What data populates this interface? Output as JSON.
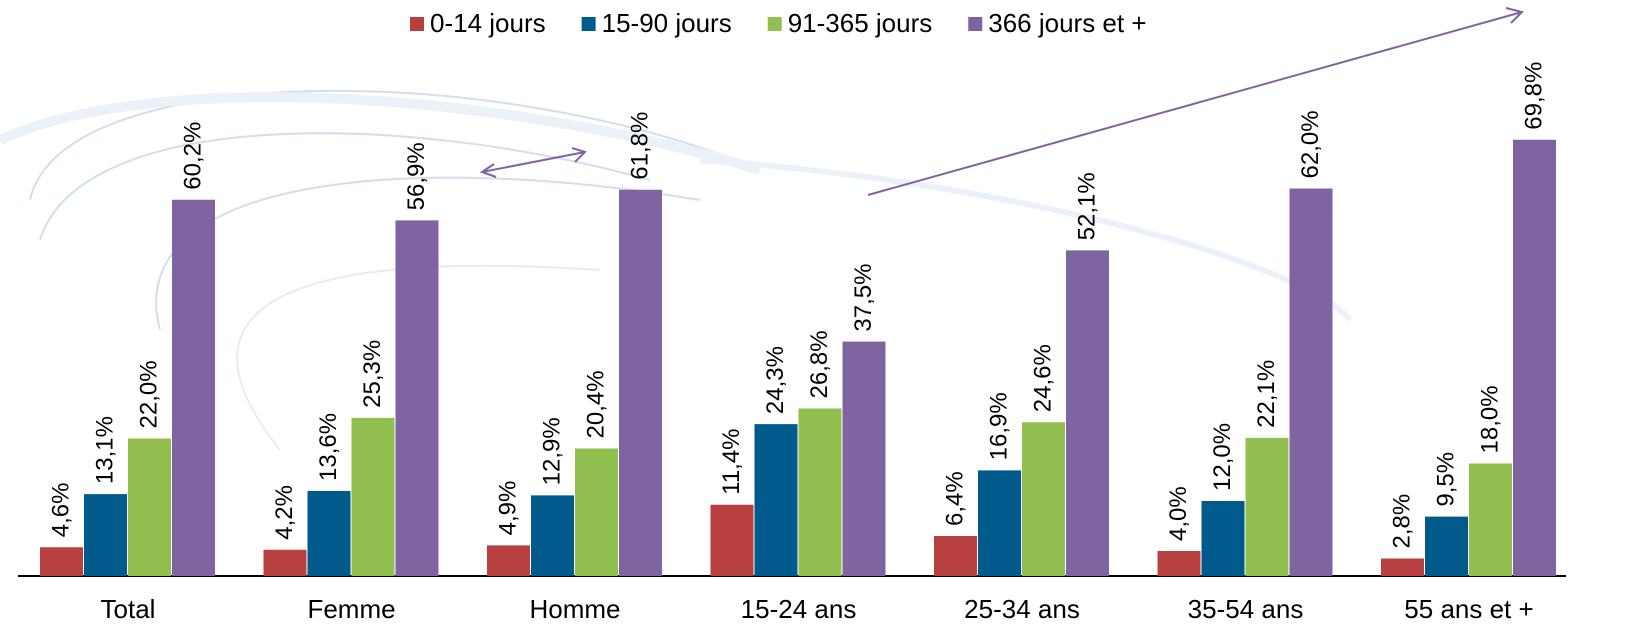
{
  "chart_data": {
    "type": "bar",
    "categories": [
      "Total",
      "Femme",
      "Homme",
      "15-24 ans",
      "25-34 ans",
      "35-54 ans",
      "55 ans et +"
    ],
    "series": [
      {
        "name": "0-14 jours",
        "color": "#b94040",
        "values": [
          4.6,
          4.2,
          4.9,
          11.4,
          6.4,
          4.0,
          2.8
        ],
        "value_labels": [
          "4,6%",
          "4,2%",
          "4,9%",
          "11,4%",
          "6,4%",
          "4,0%",
          "2,8%"
        ]
      },
      {
        "name": "15-90 jours",
        "color": "#005a8c",
        "values": [
          13.1,
          13.6,
          12.9,
          24.3,
          16.9,
          12.0,
          9.5
        ],
        "value_labels": [
          "13,1%",
          "13,6%",
          "12,9%",
          "24,3%",
          "16,9%",
          "12,0%",
          "9,5%"
        ]
      },
      {
        "name": "91-365 jours",
        "color": "#92c050",
        "values": [
          22.0,
          25.3,
          20.4,
          26.8,
          24.6,
          22.1,
          18.0
        ],
        "value_labels": [
          "22,0%",
          "25,3%",
          "20,4%",
          "26,8%",
          "24,6%",
          "22,1%",
          "18,0%"
        ]
      },
      {
        "name": "366 jours et +",
        "color": "#8064a2",
        "values": [
          60.2,
          56.9,
          61.8,
          37.5,
          52.1,
          62.0,
          69.8
        ],
        "value_labels": [
          "60,2%",
          "56,9%",
          "61,8%",
          "37,5%",
          "52,1%",
          "62,0%",
          "69,8%"
        ]
      }
    ],
    "legend": "top"
  }
}
